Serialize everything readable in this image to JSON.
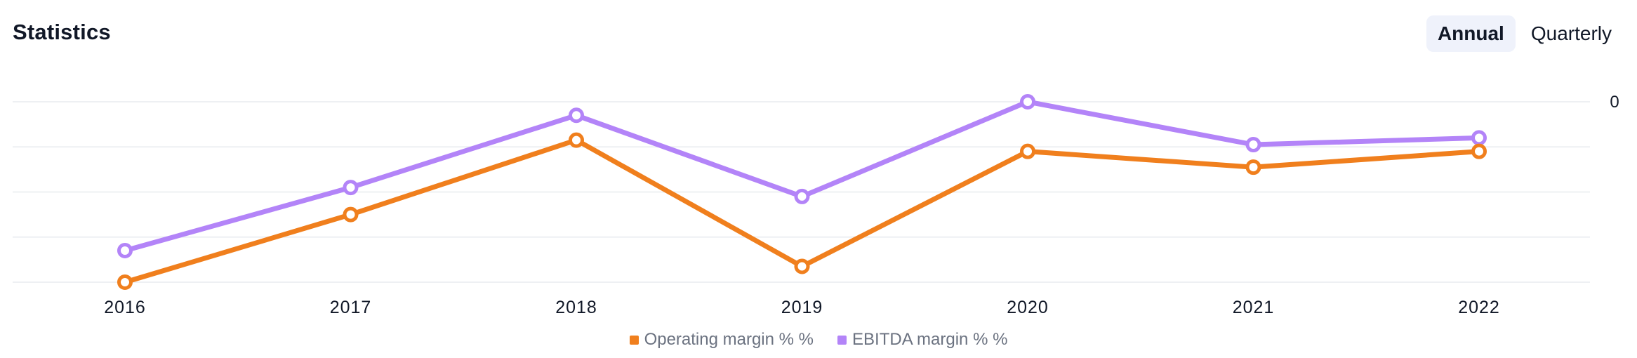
{
  "header": {
    "title": "Statistics"
  },
  "toggle": {
    "annual": "Annual",
    "quarterly": "Quarterly",
    "active": "annual"
  },
  "chart_data": {
    "type": "line",
    "title": "Statistics",
    "categories": [
      "2016",
      "2017",
      "2018",
      "2019",
      "2020",
      "2021",
      "2022"
    ],
    "y_tick_label": "0",
    "series": [
      {
        "name": "Operating margin % %",
        "color": "#f07f1d",
        "values": [
          -8.0,
          -5.0,
          -1.7,
          -7.3,
          -2.2,
          -2.9,
          -2.2
        ]
      },
      {
        "name": "EBITDA margin % %",
        "color": "#b384f8",
        "values": [
          -6.6,
          -3.8,
          -0.6,
          -4.2,
          0.0,
          -1.9,
          -1.6
        ]
      }
    ],
    "ylim": [
      -8.0,
      0.0
    ],
    "grid": true,
    "legend_position": "bottom"
  }
}
